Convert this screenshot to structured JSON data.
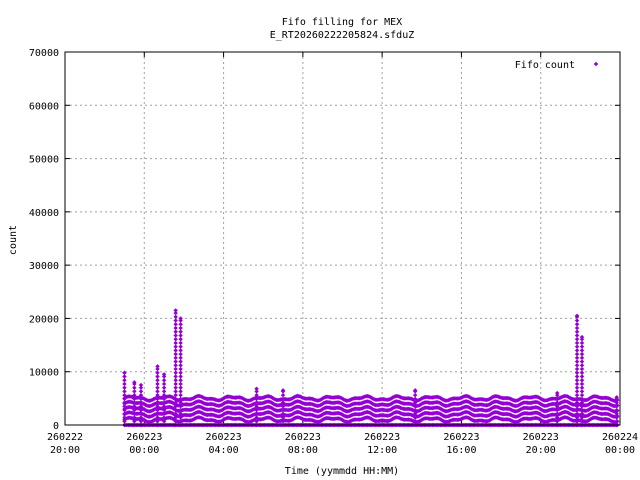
{
  "chart_data": {
    "type": "scatter",
    "title": "Fifo filling for MEX",
    "subtitle": "E_RT20260222205824.sfduZ",
    "xlabel": "Time (yymmdd HH:MM)",
    "ylabel": "count",
    "xlim": [
      "2026-02-22 20:00",
      "2026-02-24 00:00"
    ],
    "ylim": [
      0,
      70000
    ],
    "grid": true,
    "legend_position": "top-right",
    "x_ticks": [
      {
        "date": "260222",
        "time": "20:00"
      },
      {
        "date": "260223",
        "time": "00:00"
      },
      {
        "date": "260223",
        "time": "04:00"
      },
      {
        "date": "260223",
        "time": "08:00"
      },
      {
        "date": "260223",
        "time": "12:00"
      },
      {
        "date": "260223",
        "time": "16:00"
      },
      {
        "date": "260223",
        "time": "20:00"
      },
      {
        "date": "260224",
        "time": "00:00"
      }
    ],
    "y_ticks": [
      "0",
      "10000",
      "20000",
      "30000",
      "40000",
      "50000",
      "60000",
      "70000"
    ],
    "series": [
      {
        "name": "Fifo count",
        "color": "#9400d3",
        "marker": "diamond",
        "baseline_levels": [
          0,
          1000,
          2000,
          3000,
          4000,
          5000
        ],
        "peaks": [
          {
            "x": "2026-02-22 23:00",
            "y": 9800
          },
          {
            "x": "2026-02-22 23:30",
            "y": 8000
          },
          {
            "x": "2026-02-22 23:50",
            "y": 7500
          },
          {
            "x": "2026-02-23 00:40",
            "y": 11000
          },
          {
            "x": "2026-02-23 01:00",
            "y": 9500
          },
          {
            "x": "2026-02-23 01:35",
            "y": 21500
          },
          {
            "x": "2026-02-23 01:50",
            "y": 20000
          },
          {
            "x": "2026-02-23 05:40",
            "y": 6800
          },
          {
            "x": "2026-02-23 07:00",
            "y": 6500
          },
          {
            "x": "2026-02-23 13:40",
            "y": 6500
          },
          {
            "x": "2026-02-23 20:50",
            "y": 6000
          },
          {
            "x": "2026-02-23 21:50",
            "y": 20500
          },
          {
            "x": "2026-02-23 22:05",
            "y": 16500
          },
          {
            "x": "2026-02-23 23:50",
            "y": 5200
          }
        ]
      }
    ]
  }
}
